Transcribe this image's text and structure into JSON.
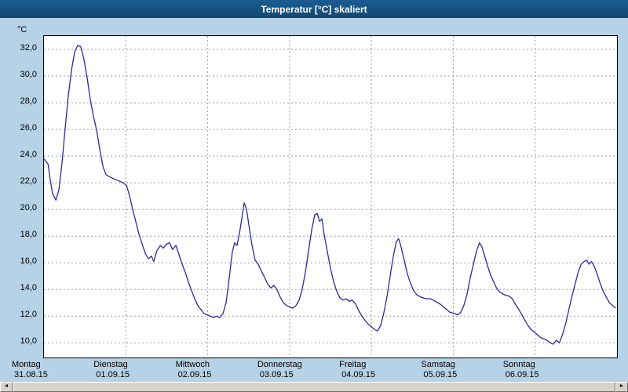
{
  "window": {
    "title": "Temperatur [°C] skaliert"
  },
  "colors": {
    "background": "#b6d2e6",
    "titlebar": "#15537f",
    "line": "#2b2b9b",
    "grid": "#9a9a9a",
    "plot_background": "#ffffff"
  },
  "scrollbar": {
    "left_arrow": "◄",
    "right_arrow": "►"
  },
  "chart_data": {
    "type": "line",
    "title": "Temperatur [°C] skaliert",
    "unit_label": "°C",
    "grid": true,
    "legend": "none",
    "ylim": [
      8.9,
      33.0
    ],
    "xlim_hours": [
      0,
      168
    ],
    "yticks": [
      {
        "value": 32,
        "label": "32,0"
      },
      {
        "value": 30,
        "label": "30,0"
      },
      {
        "value": 28,
        "label": "28,0"
      },
      {
        "value": 26,
        "label": "26,0"
      },
      {
        "value": 24,
        "label": "24,0"
      },
      {
        "value": 22,
        "label": "22,0"
      },
      {
        "value": 20,
        "label": "20,0"
      },
      {
        "value": 18,
        "label": "18,0"
      },
      {
        "value": 16,
        "label": "16,0"
      },
      {
        "value": 14,
        "label": "14,0"
      },
      {
        "value": 12,
        "label": "12,0"
      },
      {
        "value": 10,
        "label": "10,0"
      }
    ],
    "x_days": [
      {
        "name": "Montag",
        "date": "31.08.15"
      },
      {
        "name": "Dienstag",
        "date": "01.09.15"
      },
      {
        "name": "Mittwoch",
        "date": "02.09.15"
      },
      {
        "name": "Donnerstag",
        "date": "03.09.15"
      },
      {
        "name": "Freitag",
        "date": "04.09.15"
      },
      {
        "name": "Samstag",
        "date": "05.09.15"
      },
      {
        "name": "Sonntag",
        "date": "06.09.15"
      }
    ],
    "series": [
      {
        "name": "Temperatur",
        "points": [
          [
            0,
            23.8
          ],
          [
            1.2,
            23.4
          ],
          [
            1.8,
            22.3
          ],
          [
            2.5,
            21.2
          ],
          [
            3.5,
            20.7
          ],
          [
            4.4,
            21.5
          ],
          [
            5.3,
            23.5
          ],
          [
            6.2,
            26.0
          ],
          [
            7.1,
            28.5
          ],
          [
            8.1,
            30.5
          ],
          [
            9.0,
            31.8
          ],
          [
            9.9,
            32.3
          ],
          [
            10.8,
            32.2
          ],
          [
            11.7,
            31.3
          ],
          [
            12.7,
            29.8
          ],
          [
            13.6,
            28.2
          ],
          [
            14.5,
            27.0
          ],
          [
            15.4,
            26.0
          ],
          [
            16.3,
            24.6
          ],
          [
            17.3,
            23.2
          ],
          [
            18.2,
            22.6
          ],
          [
            19.6,
            22.4
          ],
          [
            21.4,
            22.2
          ],
          [
            23.2,
            22.0
          ],
          [
            24.2,
            21.8
          ],
          [
            25.1,
            21.0
          ],
          [
            26.0,
            20.0
          ],
          [
            26.9,
            19.1
          ],
          [
            27.8,
            18.2
          ],
          [
            28.8,
            17.4
          ],
          [
            29.7,
            16.7
          ],
          [
            30.6,
            16.3
          ],
          [
            31.5,
            16.5
          ],
          [
            32.2,
            16.1
          ],
          [
            33.1,
            16.9
          ],
          [
            34.1,
            17.3
          ],
          [
            35.0,
            17.1
          ],
          [
            35.9,
            17.4
          ],
          [
            36.8,
            17.5
          ],
          [
            37.7,
            17.0
          ],
          [
            38.7,
            17.3
          ],
          [
            39.6,
            16.6
          ],
          [
            40.5,
            15.9
          ],
          [
            41.4,
            15.3
          ],
          [
            42.3,
            14.6
          ],
          [
            43.3,
            13.9
          ],
          [
            44.2,
            13.3
          ],
          [
            45.1,
            12.8
          ],
          [
            46.0,
            12.5
          ],
          [
            46.9,
            12.2
          ],
          [
            47.9,
            12.1
          ],
          [
            48.8,
            12.0
          ],
          [
            49.7,
            11.9
          ],
          [
            50.6,
            12.0
          ],
          [
            51.5,
            11.9
          ],
          [
            52.5,
            12.2
          ],
          [
            53.4,
            13.0
          ],
          [
            54.3,
            14.8
          ],
          [
            55.2,
            16.8
          ],
          [
            55.9,
            17.5
          ],
          [
            56.6,
            17.3
          ],
          [
            57.3,
            18.2
          ],
          [
            58.0,
            19.3
          ],
          [
            58.7,
            20.5
          ],
          [
            59.4,
            20.0
          ],
          [
            60.1,
            18.8
          ],
          [
            61.0,
            17.3
          ],
          [
            61.9,
            16.2
          ],
          [
            62.8,
            15.9
          ],
          [
            63.7,
            15.4
          ],
          [
            64.7,
            14.9
          ],
          [
            65.6,
            14.4
          ],
          [
            66.5,
            14.1
          ],
          [
            67.4,
            14.3
          ],
          [
            68.3,
            14.0
          ],
          [
            69.3,
            13.4
          ],
          [
            70.2,
            13.0
          ],
          [
            71.1,
            12.8
          ],
          [
            72.0,
            12.7
          ],
          [
            72.9,
            12.6
          ],
          [
            73.9,
            12.8
          ],
          [
            74.8,
            13.2
          ],
          [
            75.7,
            14.0
          ],
          [
            76.6,
            15.2
          ],
          [
            77.5,
            16.8
          ],
          [
            78.5,
            18.5
          ],
          [
            79.4,
            19.6
          ],
          [
            80.1,
            19.7
          ],
          [
            80.8,
            19.1
          ],
          [
            81.5,
            19.3
          ],
          [
            82.1,
            18.2
          ],
          [
            83.1,
            16.8
          ],
          [
            84.0,
            15.6
          ],
          [
            84.9,
            14.6
          ],
          [
            85.8,
            13.9
          ],
          [
            86.7,
            13.4
          ],
          [
            87.7,
            13.2
          ],
          [
            88.6,
            13.3
          ],
          [
            89.5,
            13.1
          ],
          [
            90.4,
            13.2
          ],
          [
            91.4,
            12.9
          ],
          [
            92.3,
            12.4
          ],
          [
            93.2,
            12.0
          ],
          [
            94.1,
            11.7
          ],
          [
            95.1,
            11.4
          ],
          [
            96.0,
            11.2
          ],
          [
            96.9,
            11.0
          ],
          [
            97.8,
            10.9
          ],
          [
            98.7,
            11.3
          ],
          [
            99.6,
            12.2
          ],
          [
            100.6,
            13.5
          ],
          [
            101.5,
            15.0
          ],
          [
            102.4,
            16.5
          ],
          [
            103.3,
            17.6
          ],
          [
            104.0,
            17.8
          ],
          [
            104.7,
            17.2
          ],
          [
            105.6,
            16.2
          ],
          [
            106.5,
            15.2
          ],
          [
            107.4,
            14.5
          ],
          [
            108.4,
            13.9
          ],
          [
            109.3,
            13.6
          ],
          [
            110.7,
            13.4
          ],
          [
            112.1,
            13.3
          ],
          [
            113.4,
            13.3
          ],
          [
            114.8,
            13.1
          ],
          [
            116.2,
            12.9
          ],
          [
            117.6,
            12.6
          ],
          [
            119.0,
            12.3
          ],
          [
            120.4,
            12.2
          ],
          [
            121.3,
            12.1
          ],
          [
            122.2,
            12.3
          ],
          [
            123.1,
            12.8
          ],
          [
            124.0,
            13.6
          ],
          [
            124.9,
            14.8
          ],
          [
            125.9,
            15.9
          ],
          [
            126.8,
            16.9
          ],
          [
            127.7,
            17.5
          ],
          [
            128.4,
            17.2
          ],
          [
            129.1,
            16.6
          ],
          [
            130.0,
            15.8
          ],
          [
            130.9,
            15.1
          ],
          [
            131.8,
            14.6
          ],
          [
            132.7,
            14.1
          ],
          [
            133.6,
            13.8
          ],
          [
            135.0,
            13.6
          ],
          [
            136.4,
            13.5
          ],
          [
            137.3,
            13.3
          ],
          [
            138.2,
            12.9
          ],
          [
            139.2,
            12.5
          ],
          [
            140.1,
            12.1
          ],
          [
            141.0,
            11.7
          ],
          [
            141.9,
            11.3
          ],
          [
            142.8,
            11.0
          ],
          [
            143.8,
            10.8
          ],
          [
            144.7,
            10.6
          ],
          [
            145.6,
            10.4
          ],
          [
            146.5,
            10.3
          ],
          [
            147.4,
            10.2
          ],
          [
            148.4,
            10.0
          ],
          [
            149.3,
            9.9
          ],
          [
            150.2,
            10.2
          ],
          [
            151.1,
            10.0
          ],
          [
            152.0,
            10.6
          ],
          [
            152.9,
            11.4
          ],
          [
            153.8,
            12.4
          ],
          [
            154.7,
            13.4
          ],
          [
            155.7,
            14.4
          ],
          [
            156.6,
            15.3
          ],
          [
            157.5,
            15.9
          ],
          [
            158.4,
            16.1
          ],
          [
            159.1,
            16.2
          ],
          [
            159.8,
            15.9
          ],
          [
            160.5,
            16.1
          ],
          [
            161.2,
            15.8
          ],
          [
            162.1,
            15.2
          ],
          [
            163.0,
            14.5
          ],
          [
            163.9,
            13.9
          ],
          [
            164.9,
            13.4
          ],
          [
            165.8,
            13.0
          ],
          [
            166.7,
            12.8
          ],
          [
            167.6,
            12.6
          ]
        ]
      }
    ]
  }
}
